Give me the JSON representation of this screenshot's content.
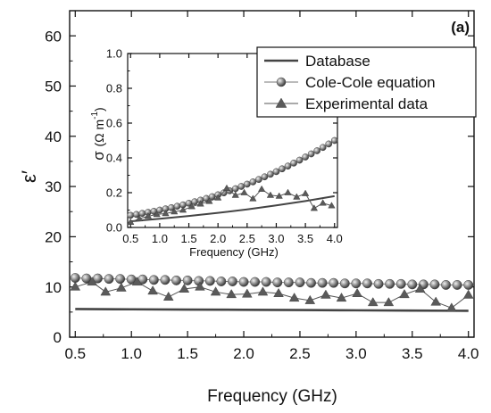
{
  "chart_data": [
    {
      "type": "line",
      "panel_label": "(a)",
      "xlabel": "Frequency (GHz)",
      "ylabel": "ε′",
      "xlim": [
        0.45,
        4.05
      ],
      "ylim": [
        0,
        65
      ],
      "xticks": [
        "0.5",
        "1.0",
        "1.5",
        "2.0",
        "2.5",
        "3.0",
        "3.5",
        "4.0"
      ],
      "yticks": [
        "0",
        "10",
        "20",
        "30",
        "40",
        "50",
        "60"
      ],
      "series": [
        {
          "name": "Database",
          "style": "line",
          "color": "#444444",
          "x": [
            0.5,
            1.0,
            1.5,
            2.0,
            2.5,
            3.0,
            3.5,
            4.0
          ],
          "y": [
            5.6,
            5.55,
            5.5,
            5.45,
            5.4,
            5.35,
            5.3,
            5.25
          ]
        },
        {
          "name": "Cole-Cole equation",
          "style": "line-sphere",
          "color": "#777777",
          "x": [
            0.5,
            0.6,
            0.7,
            0.8,
            0.9,
            1.0,
            1.1,
            1.2,
            1.3,
            1.4,
            1.5,
            1.6,
            1.7,
            1.8,
            1.9,
            2.0,
            2.1,
            2.2,
            2.3,
            2.4,
            2.5,
            2.6,
            2.7,
            2.8,
            2.9,
            3.0,
            3.1,
            3.2,
            3.3,
            3.4,
            3.5,
            3.6,
            3.7,
            3.8,
            3.9,
            4.0
          ],
          "y": [
            11.8,
            11.7,
            11.7,
            11.6,
            11.6,
            11.5,
            11.5,
            11.4,
            11.4,
            11.3,
            11.3,
            11.2,
            11.2,
            11.1,
            11.1,
            11.0,
            11.0,
            11.0,
            10.9,
            10.9,
            10.9,
            10.8,
            10.8,
            10.8,
            10.7,
            10.7,
            10.7,
            10.6,
            10.6,
            10.6,
            10.5,
            10.5,
            10.5,
            10.4,
            10.4,
            10.4
          ]
        },
        {
          "name": "Experimental data",
          "style": "line-triangle",
          "color": "#555555",
          "x": [
            0.5,
            0.65,
            0.77,
            0.91,
            1.05,
            1.19,
            1.33,
            1.47,
            1.61,
            1.75,
            1.89,
            2.03,
            2.17,
            2.31,
            2.45,
            2.59,
            2.73,
            2.87,
            3.01,
            3.15,
            3.29,
            3.43,
            3.57,
            3.71,
            3.85,
            4.0
          ],
          "y": [
            10.0,
            11.0,
            9.0,
            9.8,
            11.0,
            9.2,
            8.0,
            9.6,
            10.0,
            9.0,
            8.5,
            8.6,
            9.0,
            8.7,
            7.8,
            7.3,
            8.4,
            7.8,
            8.7,
            6.9,
            6.9,
            8.5,
            9.6,
            7.0,
            5.8,
            8.4
          ]
        }
      ]
    },
    {
      "type": "line",
      "inset": true,
      "xlabel": "Frequency (GHz)",
      "ylabel": "σ (Ω m⁻¹)",
      "ylabel_main": "σ",
      "ylabel_unit": "(Ω m",
      "ylabel_exp": "-1",
      "xlim": [
        0.45,
        4.05
      ],
      "ylim": [
        0,
        1.0
      ],
      "xticks": [
        "0.5",
        "1.0",
        "1.5",
        "2.0",
        "2.5",
        "3.0",
        "3.5",
        "4.0"
      ],
      "yticks": [
        "0.0",
        "0.2",
        "0.4",
        "0.6",
        "0.8",
        "1.0"
      ],
      "series": [
        {
          "name": "Database",
          "style": "line",
          "color": "#444444",
          "x": [
            0.5,
            1.0,
            1.5,
            2.0,
            2.5,
            3.0,
            3.5,
            4.0
          ],
          "y": [
            0.035,
            0.05,
            0.066,
            0.084,
            0.104,
            0.127,
            0.152,
            0.18
          ]
        },
        {
          "name": "Cole-Cole equation",
          "style": "line-sphere",
          "color": "#777777",
          "x": [
            0.5,
            0.6,
            0.7,
            0.8,
            0.9,
            1.0,
            1.1,
            1.2,
            1.3,
            1.4,
            1.5,
            1.6,
            1.7,
            1.8,
            1.9,
            2.0,
            2.1,
            2.2,
            2.3,
            2.4,
            2.5,
            2.6,
            2.7,
            2.8,
            2.9,
            3.0,
            3.1,
            3.2,
            3.3,
            3.4,
            3.5,
            3.6,
            3.7,
            3.8,
            3.9,
            4.0
          ],
          "y": [
            0.07,
            0.075,
            0.081,
            0.087,
            0.093,
            0.1,
            0.107,
            0.114,
            0.122,
            0.13,
            0.139,
            0.148,
            0.157,
            0.167,
            0.177,
            0.188,
            0.199,
            0.211,
            0.223,
            0.236,
            0.249,
            0.262,
            0.276,
            0.291,
            0.306,
            0.321,
            0.337,
            0.353,
            0.37,
            0.387,
            0.405,
            0.423,
            0.441,
            0.46,
            0.48,
            0.5
          ]
        },
        {
          "name": "Experimental data",
          "style": "line-triangle",
          "color": "#555555",
          "x": [
            0.5,
            0.65,
            0.8,
            0.95,
            1.1,
            1.25,
            1.4,
            1.55,
            1.7,
            1.85,
            2.0,
            2.15,
            2.3,
            2.45,
            2.6,
            2.75,
            2.9,
            3.05,
            3.2,
            3.35,
            3.5,
            3.65,
            3.8,
            3.95
          ],
          "y": [
            0.03,
            0.05,
            0.065,
            0.075,
            0.08,
            0.09,
            0.1,
            0.12,
            0.135,
            0.15,
            0.17,
            0.225,
            0.185,
            0.2,
            0.165,
            0.22,
            0.185,
            0.18,
            0.2,
            0.175,
            0.195,
            0.11,
            0.14,
            0.125
          ]
        }
      ]
    }
  ]
}
